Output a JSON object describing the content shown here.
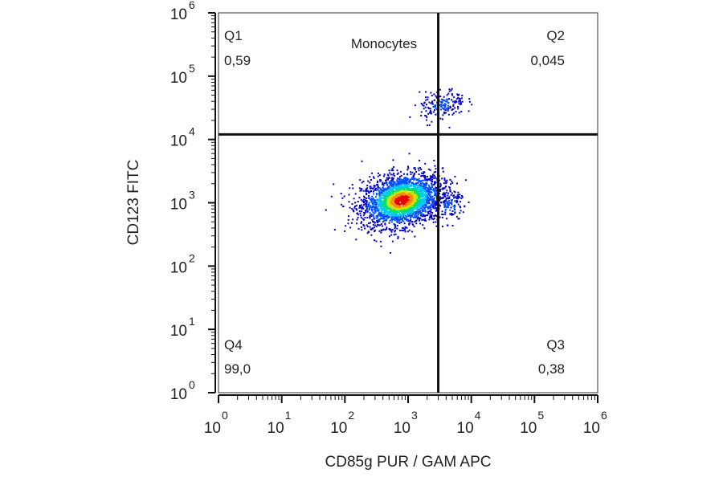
{
  "chart_data": {
    "type": "scatter",
    "title": "Monocytes",
    "xlabel": "CD85g PUR / GAM APC",
    "ylabel": "CD123 FITC",
    "x_scale": "log",
    "y_scale": "log",
    "xlim": [
      1,
      1000000
    ],
    "ylim": [
      1,
      1000000
    ],
    "x_ticks": [
      {
        "base": "10",
        "exp": "0"
      },
      {
        "base": "10",
        "exp": "1"
      },
      {
        "base": "10",
        "exp": "2"
      },
      {
        "base": "10",
        "exp": "3"
      },
      {
        "base": "10",
        "exp": "4"
      },
      {
        "base": "10",
        "exp": "5"
      },
      {
        "base": "10",
        "exp": "6"
      }
    ],
    "y_ticks": [
      {
        "base": "10",
        "exp": "0"
      },
      {
        "base": "10",
        "exp": "1"
      },
      {
        "base": "10",
        "exp": "2"
      },
      {
        "base": "10",
        "exp": "3"
      },
      {
        "base": "10",
        "exp": "4"
      },
      {
        "base": "10",
        "exp": "5"
      },
      {
        "base": "10",
        "exp": "6"
      }
    ],
    "quadrant_gate": {
      "x": 3000,
      "y": 12000
    },
    "quadrants": [
      {
        "name": "Q1",
        "value": "0,59",
        "position": "top-left"
      },
      {
        "name": "Q2",
        "value": "0,045",
        "position": "top-right"
      },
      {
        "name": "Q3",
        "value": "0,38",
        "position": "bottom-right"
      },
      {
        "name": "Q4",
        "value": "99,0",
        "position": "bottom-left"
      }
    ],
    "populations": [
      {
        "center_x": 800,
        "center_y": 1100,
        "spread_x_log": 0.32,
        "spread_y_log": 0.2,
        "count": 2600
      },
      {
        "center_x": 3500,
        "center_y": 35000,
        "spread_x_log": 0.18,
        "spread_y_log": 0.12,
        "count": 180
      },
      {
        "center_x": 4500,
        "center_y": 900,
        "spread_x_log": 0.15,
        "spread_y_log": 0.12,
        "count": 120
      }
    ],
    "density_colors": [
      "#0000c8",
      "#0050ff",
      "#00c8ff",
      "#00e070",
      "#c8e600",
      "#ff8c00",
      "#e60000"
    ],
    "grid": false
  }
}
